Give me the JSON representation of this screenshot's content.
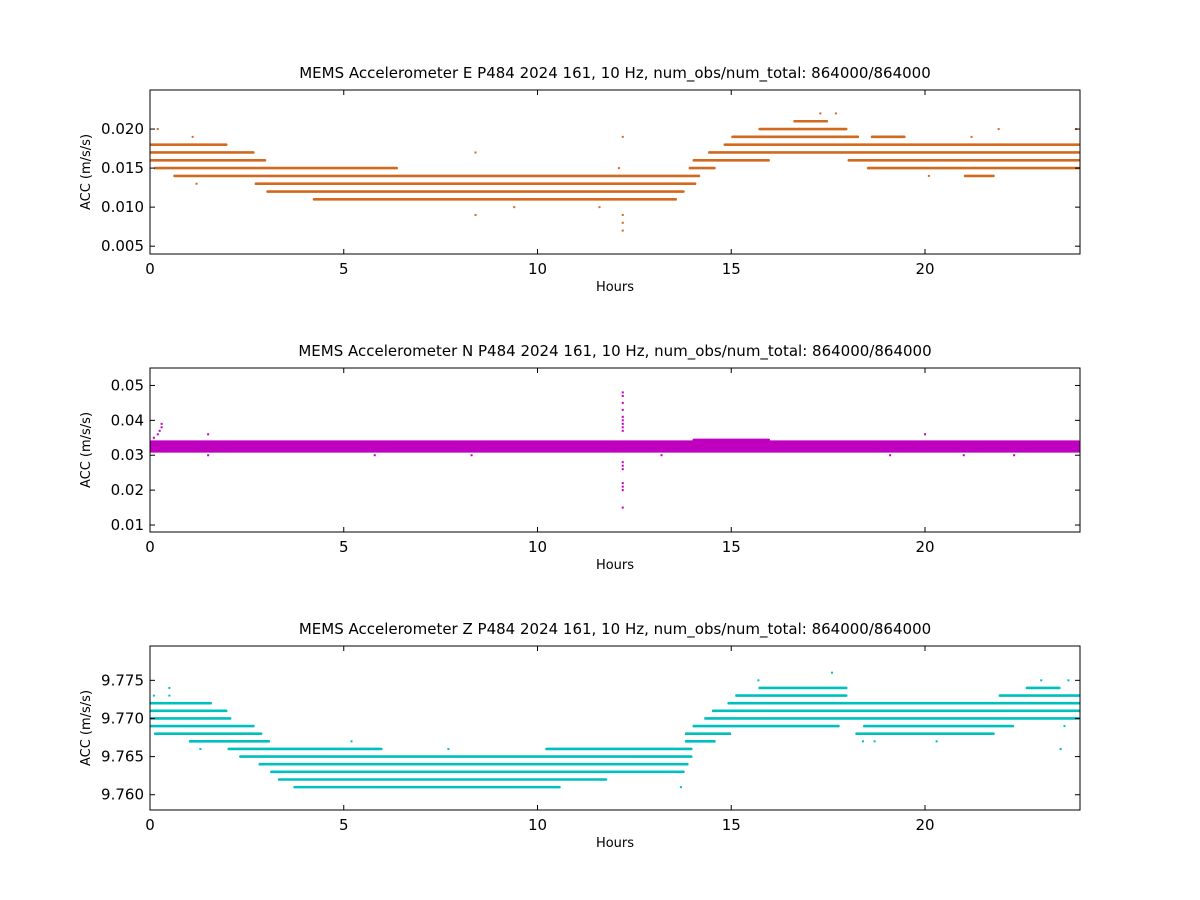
{
  "chart_data": [
    {
      "type": "scatter",
      "title": "MEMS Accelerometer E P484 2024 161, 10 Hz, num_obs/num_total: 864000/864000",
      "xlabel": "Hours",
      "ylabel": "ACC (m/s/s)",
      "xlim": [
        0,
        24
      ],
      "ylim": [
        0.004,
        0.025
      ],
      "xticks": [
        0,
        5,
        10,
        15,
        20
      ],
      "yticks": [
        0.005,
        0.01,
        0.015,
        0.02
      ],
      "ytick_labels": [
        "0.005",
        "0.010",
        "0.015",
        "0.020"
      ],
      "grid": false,
      "color": "#d2691e",
      "bands": [
        {
          "y": 0.018,
          "x": [
            0.0,
            2.0
          ]
        },
        {
          "y": 0.017,
          "x": [
            0.0,
            2.7
          ]
        },
        {
          "y": 0.016,
          "x": [
            0.0,
            3.0
          ]
        },
        {
          "y": 0.015,
          "x": [
            0.1,
            6.4
          ]
        },
        {
          "y": 0.014,
          "x": [
            0.6,
            14.2
          ]
        },
        {
          "y": 0.013,
          "x": [
            2.7,
            14.1
          ]
        },
        {
          "y": 0.012,
          "x": [
            3.0,
            13.8
          ]
        },
        {
          "y": 0.011,
          "x": [
            4.2,
            13.6
          ]
        },
        {
          "y": 0.015,
          "x": [
            13.9,
            14.6
          ]
        },
        {
          "y": 0.016,
          "x": [
            14.0,
            16.0
          ]
        },
        {
          "y": 0.017,
          "x": [
            14.4,
            24.0
          ]
        },
        {
          "y": 0.018,
          "x": [
            14.8,
            24.0
          ]
        },
        {
          "y": 0.019,
          "x": [
            15.0,
            18.3
          ]
        },
        {
          "y": 0.02,
          "x": [
            15.7,
            18.0
          ]
        },
        {
          "y": 0.021,
          "x": [
            16.6,
            17.5
          ]
        },
        {
          "y": 0.016,
          "x": [
            18.0,
            24.0
          ]
        },
        {
          "y": 0.015,
          "x": [
            18.5,
            24.0
          ]
        },
        {
          "y": 0.019,
          "x": [
            18.6,
            19.5
          ]
        },
        {
          "y": 0.014,
          "x": [
            21.0,
            21.8
          ]
        }
      ],
      "outliers": [
        {
          "x": 0.2,
          "y": 0.02
        },
        {
          "x": 1.1,
          "y": 0.019
        },
        {
          "x": 1.2,
          "y": 0.013
        },
        {
          "x": 8.4,
          "y": 0.017
        },
        {
          "x": 8.4,
          "y": 0.009
        },
        {
          "x": 9.4,
          "y": 0.01
        },
        {
          "x": 11.6,
          "y": 0.01
        },
        {
          "x": 12.2,
          "y": 0.019
        },
        {
          "x": 12.2,
          "y": 0.009
        },
        {
          "x": 12.2,
          "y": 0.008
        },
        {
          "x": 12.2,
          "y": 0.007
        },
        {
          "x": 12.1,
          "y": 0.015
        },
        {
          "x": 17.3,
          "y": 0.022
        },
        {
          "x": 17.7,
          "y": 0.022
        },
        {
          "x": 20.1,
          "y": 0.014
        },
        {
          "x": 21.2,
          "y": 0.019
        },
        {
          "x": 21.9,
          "y": 0.02
        },
        {
          "x": 23.9,
          "y": 0.02
        }
      ]
    },
    {
      "type": "scatter",
      "title": "MEMS Accelerometer N P484 2024 161, 10 Hz, num_obs/num_total: 864000/864000",
      "xlabel": "Hours",
      "ylabel": "ACC (m/s/s)",
      "xlim": [
        0,
        24
      ],
      "ylim": [
        0.008,
        0.055
      ],
      "xticks": [
        0,
        5,
        10,
        15,
        20
      ],
      "yticks": [
        0.01,
        0.02,
        0.03,
        0.04,
        0.05
      ],
      "ytick_labels": [
        "0.01",
        "0.02",
        "0.03",
        "0.04",
        "0.05"
      ],
      "grid": false,
      "color": "#bf00bf",
      "bands": [
        {
          "y": 0.0325,
          "x": [
            0.0,
            24.0
          ],
          "height": 0.0035
        },
        {
          "y": 0.0335,
          "x": [
            14.0,
            16.0
          ],
          "height": 0.0025
        }
      ],
      "outliers": [
        {
          "x": 0.1,
          "y": 0.035
        },
        {
          "x": 0.2,
          "y": 0.036
        },
        {
          "x": 0.25,
          "y": 0.037
        },
        {
          "x": 0.3,
          "y": 0.038
        },
        {
          "x": 0.3,
          "y": 0.039
        },
        {
          "x": 1.5,
          "y": 0.036
        },
        {
          "x": 1.5,
          "y": 0.03
        },
        {
          "x": 5.8,
          "y": 0.03
        },
        {
          "x": 8.3,
          "y": 0.03
        },
        {
          "x": 12.2,
          "y": 0.048
        },
        {
          "x": 12.2,
          "y": 0.047
        },
        {
          "x": 12.2,
          "y": 0.045
        },
        {
          "x": 12.2,
          "y": 0.043
        },
        {
          "x": 12.2,
          "y": 0.041
        },
        {
          "x": 12.2,
          "y": 0.04
        },
        {
          "x": 12.2,
          "y": 0.039
        },
        {
          "x": 12.2,
          "y": 0.038
        },
        {
          "x": 12.2,
          "y": 0.037
        },
        {
          "x": 12.2,
          "y": 0.028
        },
        {
          "x": 12.2,
          "y": 0.027
        },
        {
          "x": 12.2,
          "y": 0.026
        },
        {
          "x": 12.2,
          "y": 0.022
        },
        {
          "x": 12.2,
          "y": 0.021
        },
        {
          "x": 12.2,
          "y": 0.02
        },
        {
          "x": 12.2,
          "y": 0.015
        },
        {
          "x": 13.2,
          "y": 0.03
        },
        {
          "x": 19.1,
          "y": 0.03
        },
        {
          "x": 20.0,
          "y": 0.036
        },
        {
          "x": 21.0,
          "y": 0.03
        },
        {
          "x": 22.3,
          "y": 0.03
        }
      ]
    },
    {
      "type": "scatter",
      "title": "MEMS Accelerometer Z P484 2024 161, 10 Hz, num_obs/num_total: 864000/864000",
      "xlabel": "Hours",
      "ylabel": "ACC (m/s/s)",
      "xlim": [
        0,
        24
      ],
      "ylim": [
        9.758,
        9.7795
      ],
      "xticks": [
        0,
        5,
        10,
        15,
        20
      ],
      "yticks": [
        9.76,
        9.765,
        9.77,
        9.775
      ],
      "ytick_labels": [
        "9.760",
        "9.765",
        "9.770",
        "9.775"
      ],
      "grid": false,
      "color": "#00bfbf",
      "bands": [
        {
          "y": 9.772,
          "x": [
            0.0,
            1.6
          ]
        },
        {
          "y": 9.771,
          "x": [
            0.0,
            2.0
          ]
        },
        {
          "y": 9.77,
          "x": [
            0.0,
            2.1
          ]
        },
        {
          "y": 9.769,
          "x": [
            0.0,
            2.7
          ]
        },
        {
          "y": 9.768,
          "x": [
            0.1,
            2.9
          ]
        },
        {
          "y": 9.767,
          "x": [
            1.0,
            3.1
          ]
        },
        {
          "y": 9.766,
          "x": [
            2.0,
            6.0
          ]
        },
        {
          "y": 9.765,
          "x": [
            2.3,
            14.0
          ]
        },
        {
          "y": 9.764,
          "x": [
            2.8,
            13.9
          ]
        },
        {
          "y": 9.763,
          "x": [
            3.1,
            13.8
          ]
        },
        {
          "y": 9.762,
          "x": [
            3.3,
            11.8
          ]
        },
        {
          "y": 9.761,
          "x": [
            3.7,
            10.6
          ]
        },
        {
          "y": 9.766,
          "x": [
            10.2,
            14.0
          ]
        },
        {
          "y": 9.767,
          "x": [
            13.8,
            14.6
          ]
        },
        {
          "y": 9.768,
          "x": [
            13.8,
            15.0
          ]
        },
        {
          "y": 9.769,
          "x": [
            14.0,
            17.8
          ]
        },
        {
          "y": 9.77,
          "x": [
            14.3,
            24.0
          ]
        },
        {
          "y": 9.771,
          "x": [
            14.5,
            24.0
          ]
        },
        {
          "y": 9.772,
          "x": [
            14.9,
            24.0
          ]
        },
        {
          "y": 9.773,
          "x": [
            15.1,
            18.0
          ]
        },
        {
          "y": 9.774,
          "x": [
            15.7,
            18.0
          ]
        },
        {
          "y": 9.769,
          "x": [
            18.4,
            22.3
          ]
        },
        {
          "y": 9.768,
          "x": [
            18.2,
            21.8
          ]
        },
        {
          "y": 9.773,
          "x": [
            21.9,
            24.0
          ]
        },
        {
          "y": 9.774,
          "x": [
            22.6,
            23.5
          ]
        }
      ],
      "outliers": [
        {
          "x": 0.1,
          "y": 9.773
        },
        {
          "x": 0.5,
          "y": 9.773
        },
        {
          "x": 0.5,
          "y": 9.774
        },
        {
          "x": 1.3,
          "y": 9.766
        },
        {
          "x": 5.2,
          "y": 9.767
        },
        {
          "x": 7.7,
          "y": 9.766
        },
        {
          "x": 13.7,
          "y": 9.761
        },
        {
          "x": 15.7,
          "y": 9.775
        },
        {
          "x": 17.6,
          "y": 9.776
        },
        {
          "x": 18.4,
          "y": 9.767
        },
        {
          "x": 18.7,
          "y": 9.767
        },
        {
          "x": 20.3,
          "y": 9.767
        },
        {
          "x": 23.0,
          "y": 9.775
        },
        {
          "x": 23.7,
          "y": 9.775
        },
        {
          "x": 23.8,
          "y": 9.77
        },
        {
          "x": 23.6,
          "y": 9.769
        },
        {
          "x": 23.5,
          "y": 9.766
        }
      ]
    }
  ]
}
